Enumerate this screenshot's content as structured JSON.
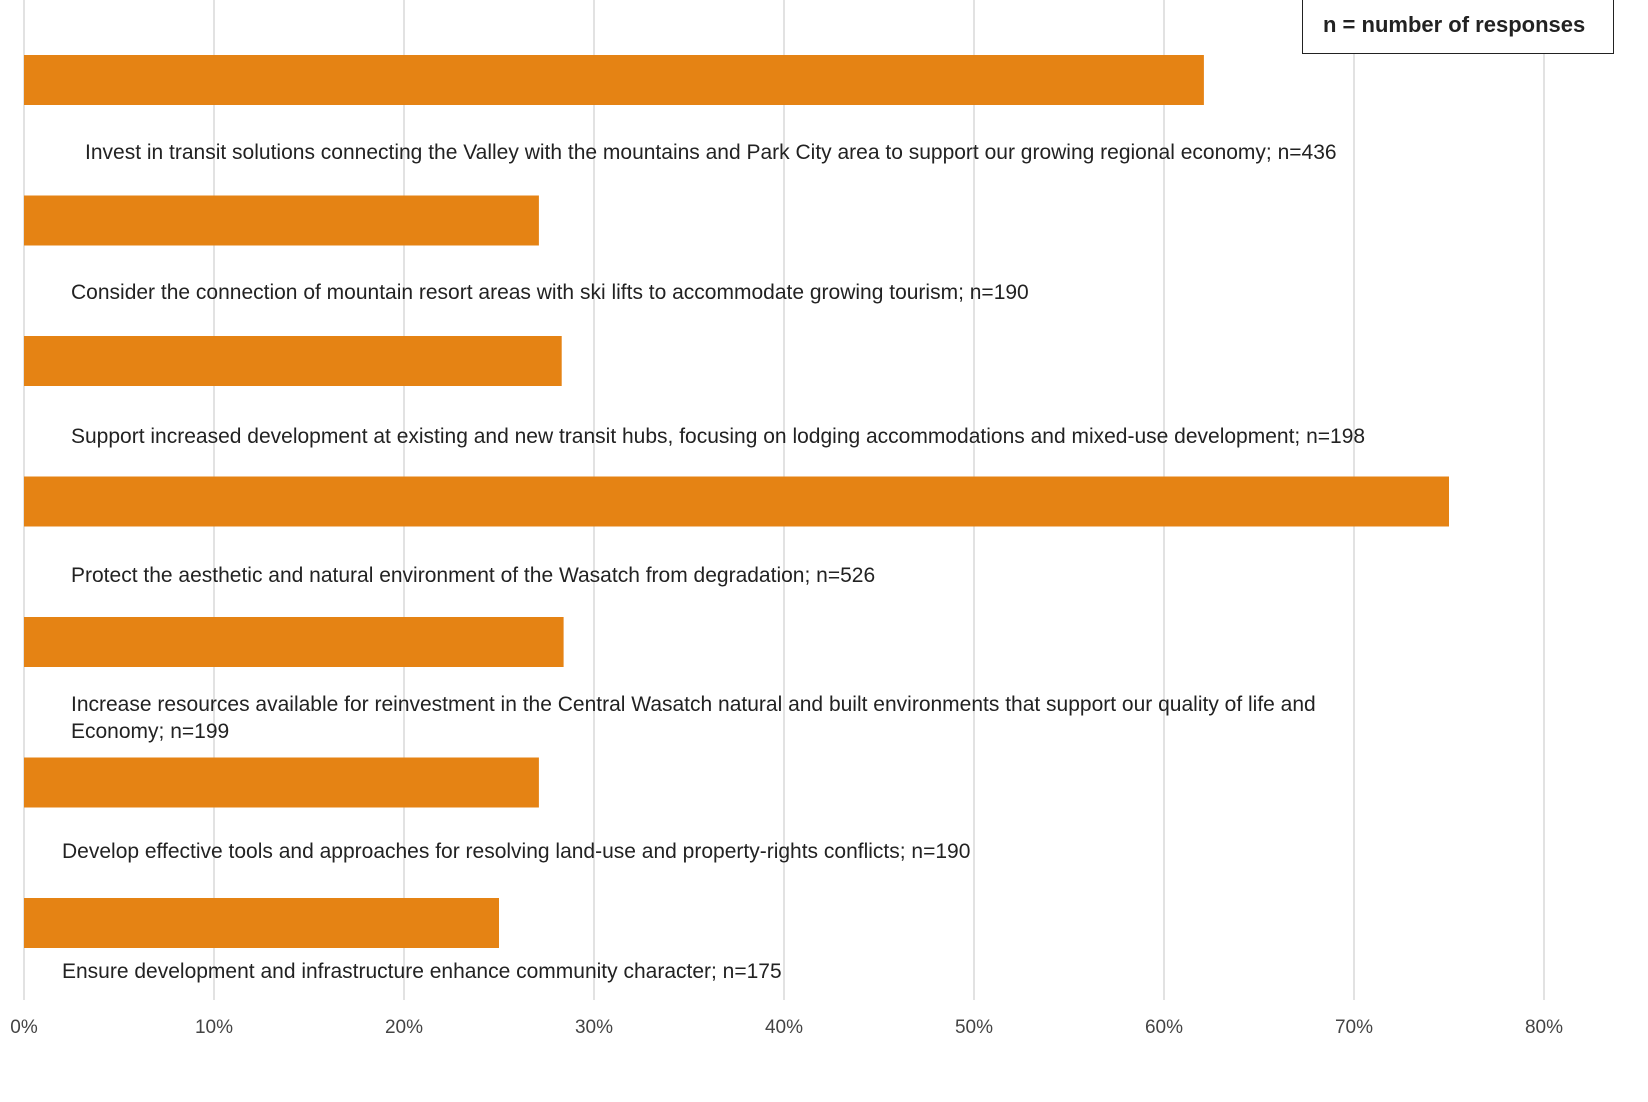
{
  "note": "n = number of responses",
  "colors": {
    "bar": "#e58314",
    "grid": "#d9d9d9",
    "text": "#222222"
  },
  "chart_data": {
    "type": "bar",
    "orientation": "horizontal",
    "title": "",
    "xlabel": "",
    "ylabel": "",
    "xlim": [
      0,
      80
    ],
    "x_ticks": [
      "0%",
      "10%",
      "20%",
      "30%",
      "40%",
      "50%",
      "60%",
      "70%",
      "80%"
    ],
    "grid": true,
    "categories": [
      [
        "Invest in transit solutions connecting the Valley with the mountains and Park City area to support our growing regional economy; n=436"
      ],
      [
        "Consider the connection of mountain resort areas with ski lifts to accommodate growing tourism; n=190"
      ],
      [
        "Support increased development at existing and new transit hubs, focusing on lodging accommodations and mixed-use development; n=198"
      ],
      [
        "Protect the aesthetic and natural environment of the Wasatch from degradation; n=526"
      ],
      [
        "Increase resources available for reinvestment in the Central Wasatch natural and built environments that support our quality of life and",
        "Economy; n=199"
      ],
      [
        "Develop effective tools and approaches for resolving land-use and property-rights conflicts; n=190"
      ],
      [
        "Ensure development and infrastructure enhance community character; n=175"
      ]
    ],
    "values": [
      62.1,
      27.1,
      28.3,
      75.0,
      28.4,
      27.1,
      25.0
    ]
  }
}
